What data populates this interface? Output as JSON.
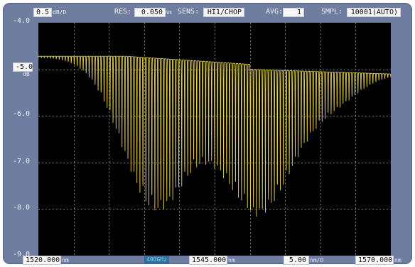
{
  "header": {
    "scale_value": "0.5",
    "scale_unit": "dB/D",
    "res_label": "RES:",
    "res_value": "0.050",
    "res_unit": "nm",
    "sens_label": "SENS:",
    "sens_value": "HI1/CHOP",
    "avg_label": "AVG:",
    "avg_value": "1",
    "smpl_label": "SMPL:",
    "smpl_value": "10001(AUTO)"
  },
  "y_axis": {
    "ticks": [
      "-4.0",
      "-6.0",
      "-7.0",
      "-8.0",
      "-9.0"
    ],
    "ref_level": "-5.0",
    "ref_unit": "dB"
  },
  "footer": {
    "start_value": "1520.000",
    "start_unit": "nm",
    "badge_text": "400GHz",
    "center_value": "1545.000",
    "center_unit": "nm",
    "span_value": "5.00",
    "span_unit": "nm/D",
    "stop_value": "1570.000",
    "stop_unit": "nm"
  },
  "colors": {
    "trace": "#e6d24a",
    "grid": "#7c7c7c",
    "frame": "#6f7ea0"
  }
}
